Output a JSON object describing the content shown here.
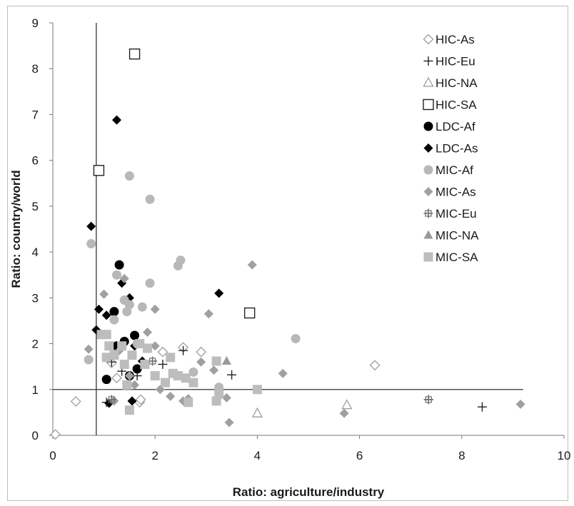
{
  "chart_data": {
    "type": "scatter",
    "xlabel": "Ratio: agriculture/industry",
    "ylabel": "Ratio: country/world",
    "xlim": [
      0,
      10
    ],
    "ylim": [
      0,
      9
    ],
    "xticks": [
      0,
      2,
      4,
      6,
      8,
      10
    ],
    "yticks": [
      0,
      1,
      2,
      3,
      4,
      5,
      6,
      7,
      8,
      9
    ],
    "grid": false,
    "legend_position": "right",
    "reference_lines": {
      "vertical_x": 0.85,
      "horizontal_y": 1.0
    },
    "series": [
      {
        "name": "HIC-As",
        "marker": "diamond-open",
        "color": "#9e9e9e",
        "points": [
          [
            0.05,
            0.02
          ],
          [
            0.45,
            0.74
          ],
          [
            1.15,
            1.58
          ],
          [
            1.25,
            1.25
          ],
          [
            1.7,
            0.72
          ],
          [
            1.72,
            0.78
          ],
          [
            2.15,
            1.82
          ],
          [
            2.55,
            1.92
          ],
          [
            2.9,
            1.82
          ],
          [
            6.3,
            1.53
          ]
        ]
      },
      {
        "name": "HIC-Eu",
        "marker": "plus",
        "color": "#222222",
        "points": [
          [
            1.05,
            0.72
          ],
          [
            1.15,
            1.6
          ],
          [
            1.35,
            1.4
          ],
          [
            1.65,
            1.3
          ],
          [
            2.15,
            1.55
          ],
          [
            2.55,
            1.85
          ],
          [
            3.5,
            1.32
          ],
          [
            7.35,
            0.78
          ],
          [
            8.4,
            0.62
          ]
        ]
      },
      {
        "name": "HIC-NA",
        "marker": "triangle-open",
        "color": "#9e9e9e",
        "points": [
          [
            4.0,
            0.48
          ],
          [
            5.75,
            0.66
          ]
        ]
      },
      {
        "name": "HIC-SA",
        "marker": "square-open",
        "color": "#222222",
        "points": [
          [
            0.9,
            5.78
          ],
          [
            1.6,
            8.32
          ],
          [
            3.85,
            2.67
          ]
        ]
      },
      {
        "name": "LDC-Af",
        "marker": "circle",
        "color": "#000000",
        "points": [
          [
            1.05,
            1.22
          ],
          [
            1.2,
            2.7
          ],
          [
            1.25,
            1.95
          ],
          [
            1.3,
            3.72
          ],
          [
            1.4,
            2.05
          ],
          [
            1.6,
            2.18
          ],
          [
            1.65,
            1.45
          ],
          [
            1.5,
            1.3
          ]
        ]
      },
      {
        "name": "LDC-As",
        "marker": "diamond",
        "color": "#000000",
        "points": [
          [
            0.75,
            4.56
          ],
          [
            0.85,
            2.3
          ],
          [
            0.9,
            2.75
          ],
          [
            1.05,
            2.62
          ],
          [
            1.1,
            0.7
          ],
          [
            1.25,
            6.88
          ],
          [
            1.35,
            3.32
          ],
          [
            1.5,
            3.0
          ],
          [
            1.55,
            0.75
          ],
          [
            1.6,
            1.95
          ],
          [
            1.75,
            1.62
          ],
          [
            3.25,
            3.1
          ]
        ]
      },
      {
        "name": "MIC-Af",
        "marker": "circle",
        "color": "#b8b8b8",
        "points": [
          [
            0.7,
            1.65
          ],
          [
            0.75,
            4.18
          ],
          [
            1.2,
            2.52
          ],
          [
            1.25,
            3.5
          ],
          [
            1.4,
            2.95
          ],
          [
            1.45,
            2.7
          ],
          [
            1.5,
            2.85
          ],
          [
            1.5,
            5.66
          ],
          [
            1.65,
            2.0
          ],
          [
            1.75,
            2.8
          ],
          [
            1.9,
            3.32
          ],
          [
            1.9,
            5.15
          ],
          [
            2.45,
            3.7
          ],
          [
            2.5,
            3.82
          ],
          [
            2.75,
            1.38
          ],
          [
            3.25,
            1.05
          ],
          [
            4.75,
            2.11
          ]
        ]
      },
      {
        "name": "MIC-As",
        "marker": "diamond",
        "color": "#a0a0a0",
        "points": [
          [
            0.7,
            1.88
          ],
          [
            1.0,
            3.08
          ],
          [
            1.05,
            1.7
          ],
          [
            1.2,
            0.75
          ],
          [
            1.3,
            1.85
          ],
          [
            1.4,
            3.42
          ],
          [
            1.5,
            1.3
          ],
          [
            1.6,
            1.1
          ],
          [
            1.85,
            2.25
          ],
          [
            2.0,
            2.75
          ],
          [
            2.0,
            1.95
          ],
          [
            2.1,
            1.0
          ],
          [
            2.3,
            0.85
          ],
          [
            2.55,
            0.75
          ],
          [
            2.65,
            0.8
          ],
          [
            2.9,
            1.6
          ],
          [
            3.05,
            2.65
          ],
          [
            3.15,
            1.42
          ],
          [
            3.4,
            0.82
          ],
          [
            3.45,
            0.28
          ],
          [
            3.9,
            3.72
          ],
          [
            4.5,
            1.35
          ],
          [
            5.7,
            0.48
          ],
          [
            9.15,
            0.68
          ]
        ]
      },
      {
        "name": "MIC-Eu",
        "marker": "plus-square",
        "color": "#6e6e6e",
        "points": [
          [
            1.15,
            0.78
          ],
          [
            1.95,
            1.62
          ],
          [
            7.35,
            0.78
          ]
        ]
      },
      {
        "name": "MIC-NA",
        "marker": "triangle",
        "color": "#9a9a9a",
        "points": [
          [
            3.4,
            1.62
          ]
        ]
      },
      {
        "name": "MIC-SA",
        "marker": "square",
        "color": "#bdbdbd",
        "points": [
          [
            0.95,
            2.2
          ],
          [
            1.05,
            2.2
          ],
          [
            1.05,
            1.7
          ],
          [
            1.1,
            1.95
          ],
          [
            1.2,
            1.75
          ],
          [
            1.35,
            1.95
          ],
          [
            1.4,
            1.55
          ],
          [
            1.45,
            1.1
          ],
          [
            1.5,
            0.55
          ],
          [
            1.55,
            1.75
          ],
          [
            1.7,
            2.0
          ],
          [
            1.8,
            1.55
          ],
          [
            1.85,
            1.9
          ],
          [
            2.0,
            1.3
          ],
          [
            2.2,
            1.15
          ],
          [
            2.3,
            1.7
          ],
          [
            2.35,
            1.35
          ],
          [
            2.45,
            1.3
          ],
          [
            2.6,
            1.25
          ],
          [
            2.65,
            0.72
          ],
          [
            2.75,
            1.15
          ],
          [
            3.2,
            1.62
          ],
          [
            3.2,
            0.75
          ],
          [
            3.25,
            0.9
          ],
          [
            4.0,
            1.0
          ]
        ]
      }
    ]
  }
}
